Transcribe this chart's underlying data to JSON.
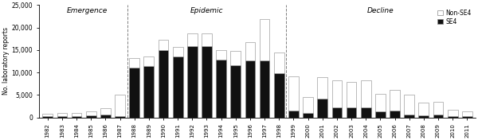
{
  "years": [
    1982,
    1983,
    1984,
    1985,
    1986,
    1987,
    1988,
    1989,
    1990,
    1991,
    1992,
    1993,
    1994,
    1995,
    1996,
    1997,
    1998,
    1999,
    2000,
    2001,
    2002,
    2003,
    2004,
    2005,
    2006,
    2007,
    2008,
    2009,
    2010,
    2011
  ],
  "se4": [
    200,
    200,
    200,
    400,
    600,
    200,
    11000,
    11500,
    15000,
    13500,
    15800,
    15800,
    12800,
    11600,
    12600,
    12600,
    9800,
    1500,
    1000,
    4200,
    2200,
    2200,
    2200,
    1400,
    1500,
    600,
    400,
    600,
    300,
    200
  ],
  "non_se4": [
    600,
    700,
    700,
    900,
    1500,
    4800,
    2200,
    2000,
    2200,
    2200,
    2800,
    2800,
    2200,
    3200,
    4200,
    9200,
    4700,
    7700,
    3500,
    4700,
    6000,
    5700,
    6000,
    3900,
    4700,
    4500,
    2900,
    2800,
    1400,
    1200
  ],
  "stage_labels": [
    "Emergence",
    "Epidemic",
    "Decline"
  ],
  "stage_dividers_idx": [
    5.5,
    16.5
  ],
  "ylim": [
    0,
    25000
  ],
  "yticks": [
    0,
    5000,
    10000,
    15000,
    20000,
    25000
  ],
  "ytick_labels": [
    "0",
    "5,000",
    "10,000",
    "15,000",
    "20,000",
    "25,000"
  ],
  "ylabel": "No. laboratory reports",
  "bar_color_se4": "#111111",
  "bar_color_non_se4": "#ffffff",
  "bar_edgecolor": "#888888",
  "legend_labels": [
    "Non-SE4",
    "SE4"
  ],
  "figsize": [
    6.0,
    1.76
  ],
  "dpi": 100
}
